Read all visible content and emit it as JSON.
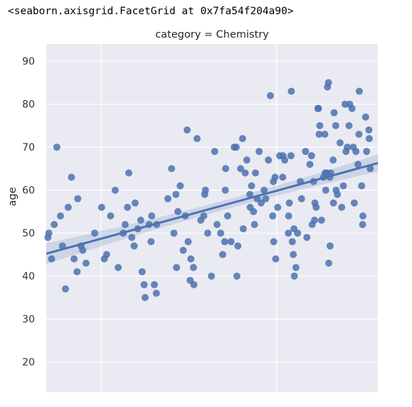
{
  "output_text": "<seaborn.axisgrid.FacetGrid at 0x7fa54f204a90>",
  "chart_data": {
    "type": "scatter",
    "title": "category = Chemistry",
    "xlabel": "",
    "ylabel": "age",
    "ylim": [
      13,
      94
    ],
    "xlim": [
      0,
      100
    ],
    "yticks": [
      20,
      30,
      40,
      50,
      60,
      70,
      80,
      90
    ],
    "xticks_gridlines_only": [
      16.5,
      69.5
    ],
    "grid": true,
    "background": "#eaeaf2",
    "point_color": "#4c72b0",
    "regression": {
      "x_start": 0,
      "y_start": 45.2,
      "x_end": 100,
      "y_end": 66.3,
      "ci_band_color": "#4c72b0"
    },
    "points": [
      {
        "x": 0.5,
        "y": 49
      },
      {
        "x": 0.8,
        "y": 50
      },
      {
        "x": 1.6,
        "y": 44
      },
      {
        "x": 2.4,
        "y": 52
      },
      {
        "x": 3.2,
        "y": 70
      },
      {
        "x": 4.3,
        "y": 54
      },
      {
        "x": 4.9,
        "y": 47
      },
      {
        "x": 5.8,
        "y": 37
      },
      {
        "x": 6.6,
        "y": 56
      },
      {
        "x": 7.6,
        "y": 63
      },
      {
        "x": 8.4,
        "y": 44
      },
      {
        "x": 9.3,
        "y": 41
      },
      {
        "x": 9.5,
        "y": 58
      },
      {
        "x": 10.5,
        "y": 47
      },
      {
        "x": 11.0,
        "y": 46
      },
      {
        "x": 12.0,
        "y": 43
      },
      {
        "x": 14.6,
        "y": 50
      },
      {
        "x": 16.7,
        "y": 56
      },
      {
        "x": 17.5,
        "y": 44
      },
      {
        "x": 18.2,
        "y": 45
      },
      {
        "x": 19.4,
        "y": 54
      },
      {
        "x": 20.8,
        "y": 60
      },
      {
        "x": 21.7,
        "y": 42
      },
      {
        "x": 23.2,
        "y": 50
      },
      {
        "x": 23.8,
        "y": 52
      },
      {
        "x": 24.5,
        "y": 56
      },
      {
        "x": 24.9,
        "y": 64
      },
      {
        "x": 25.8,
        "y": 49
      },
      {
        "x": 26.5,
        "y": 47
      },
      {
        "x": 26.8,
        "y": 57
      },
      {
        "x": 27.6,
        "y": 51
      },
      {
        "x": 28.5,
        "y": 53
      },
      {
        "x": 28.9,
        "y": 41
      },
      {
        "x": 29.5,
        "y": 38
      },
      {
        "x": 29.8,
        "y": 35
      },
      {
        "x": 31.0,
        "y": 52
      },
      {
        "x": 31.6,
        "y": 48
      },
      {
        "x": 31.8,
        "y": 54
      },
      {
        "x": 32.6,
        "y": 38
      },
      {
        "x": 33.2,
        "y": 36
      },
      {
        "x": 33.3,
        "y": 52
      },
      {
        "x": 36.7,
        "y": 58
      },
      {
        "x": 37.8,
        "y": 65
      },
      {
        "x": 38.5,
        "y": 50
      },
      {
        "x": 39.1,
        "y": 59
      },
      {
        "x": 39.3,
        "y": 42
      },
      {
        "x": 39.7,
        "y": 55
      },
      {
        "x": 40.4,
        "y": 61
      },
      {
        "x": 41.3,
        "y": 46
      },
      {
        "x": 41.9,
        "y": 54
      },
      {
        "x": 42.5,
        "y": 74
      },
      {
        "x": 42.8,
        "y": 48
      },
      {
        "x": 43.4,
        "y": 39
      },
      {
        "x": 43.6,
        "y": 44
      },
      {
        "x": 44.4,
        "y": 42
      },
      {
        "x": 44.5,
        "y": 38
      },
      {
        "x": 45.5,
        "y": 72
      },
      {
        "x": 46.6,
        "y": 53
      },
      {
        "x": 47.5,
        "y": 54
      },
      {
        "x": 47.8,
        "y": 59
      },
      {
        "x": 48.0,
        "y": 60
      },
      {
        "x": 48.7,
        "y": 50
      },
      {
        "x": 49.8,
        "y": 40
      },
      {
        "x": 50.8,
        "y": 69
      },
      {
        "x": 51.5,
        "y": 52
      },
      {
        "x": 52.6,
        "y": 50
      },
      {
        "x": 53.2,
        "y": 45
      },
      {
        "x": 53.8,
        "y": 48
      },
      {
        "x": 54.0,
        "y": 60
      },
      {
        "x": 54.1,
        "y": 65
      },
      {
        "x": 54.7,
        "y": 54
      },
      {
        "x": 55.7,
        "y": 48
      },
      {
        "x": 56.7,
        "y": 70
      },
      {
        "x": 57.3,
        "y": 70
      },
      {
        "x": 57.5,
        "y": 40
      },
      {
        "x": 57.8,
        "y": 47
      },
      {
        "x": 58.6,
        "y": 65
      },
      {
        "x": 59.2,
        "y": 72
      },
      {
        "x": 59.4,
        "y": 51
      },
      {
        "x": 60.0,
        "y": 64
      },
      {
        "x": 60.5,
        "y": 67
      },
      {
        "x": 61.4,
        "y": 59
      },
      {
        "x": 61.5,
        "y": 56
      },
      {
        "x": 61.9,
        "y": 61
      },
      {
        "x": 62.5,
        "y": 55
      },
      {
        "x": 62.8,
        "y": 52
      },
      {
        "x": 63.1,
        "y": 64
      },
      {
        "x": 63.6,
        "y": 58
      },
      {
        "x": 64.2,
        "y": 69
      },
      {
        "x": 64.8,
        "y": 57
      },
      {
        "x": 65.7,
        "y": 60
      },
      {
        "x": 66.2,
        "y": 58
      },
      {
        "x": 67.0,
        "y": 67
      },
      {
        "x": 67.6,
        "y": 82
      },
      {
        "x": 68.3,
        "y": 54
      },
      {
        "x": 68.5,
        "y": 62
      },
      {
        "x": 68.6,
        "y": 48
      },
      {
        "x": 69.0,
        "y": 63
      },
      {
        "x": 69.2,
        "y": 44
      },
      {
        "x": 69.8,
        "y": 56
      },
      {
        "x": 70.4,
        "y": 68
      },
      {
        "x": 71.3,
        "y": 63
      },
      {
        "x": 71.4,
        "y": 68
      },
      {
        "x": 71.9,
        "y": 67
      },
      {
        "x": 73.0,
        "y": 50
      },
      {
        "x": 73.1,
        "y": 54
      },
      {
        "x": 73.3,
        "y": 57
      },
      {
        "x": 73.8,
        "y": 68
      },
      {
        "x": 73.9,
        "y": 83
      },
      {
        "x": 74.2,
        "y": 48
      },
      {
        "x": 74.5,
        "y": 45
      },
      {
        "x": 74.7,
        "y": 51
      },
      {
        "x": 74.8,
        "y": 40
      },
      {
        "x": 75.3,
        "y": 42
      },
      {
        "x": 75.8,
        "y": 50
      },
      {
        "x": 76.6,
        "y": 62
      },
      {
        "x": 77.0,
        "y": 58
      },
      {
        "x": 78.2,
        "y": 69
      },
      {
        "x": 78.6,
        "y": 49
      },
      {
        "x": 79.5,
        "y": 66
      },
      {
        "x": 80.0,
        "y": 68
      },
      {
        "x": 80.2,
        "y": 52
      },
      {
        "x": 80.6,
        "y": 62
      },
      {
        "x": 80.9,
        "y": 53
      },
      {
        "x": 81.0,
        "y": 57
      },
      {
        "x": 81.4,
        "y": 56
      },
      {
        "x": 81.9,
        "y": 79
      },
      {
        "x": 82.1,
        "y": 79
      },
      {
        "x": 82.3,
        "y": 73
      },
      {
        "x": 82.5,
        "y": 75
      },
      {
        "x": 83.0,
        "y": 53
      },
      {
        "x": 83.6,
        "y": 63
      },
      {
        "x": 84.0,
        "y": 73
      },
      {
        "x": 84.1,
        "y": 64
      },
      {
        "x": 84.3,
        "y": 60
      },
      {
        "x": 84.6,
        "y": 64
      },
      {
        "x": 84.8,
        "y": 84
      },
      {
        "x": 85.1,
        "y": 85
      },
      {
        "x": 85.2,
        "y": 43
      },
      {
        "x": 85.5,
        "y": 63
      },
      {
        "x": 85.6,
        "y": 47
      },
      {
        "x": 85.8,
        "y": 64
      },
      {
        "x": 86.5,
        "y": 67
      },
      {
        "x": 86.6,
        "y": 57
      },
      {
        "x": 86.8,
        "y": 78
      },
      {
        "x": 87.3,
        "y": 75
      },
      {
        "x": 87.4,
        "y": 60
      },
      {
        "x": 87.8,
        "y": 59
      },
      {
        "x": 88.6,
        "y": 71
      },
      {
        "x": 89.1,
        "y": 56
      },
      {
        "x": 89.6,
        "y": 61
      },
      {
        "x": 90.1,
        "y": 80
      },
      {
        "x": 90.4,
        "y": 69
      },
      {
        "x": 90.8,
        "y": 70
      },
      {
        "x": 91.3,
        "y": 75
      },
      {
        "x": 91.5,
        "y": 80
      },
      {
        "x": 92.2,
        "y": 79
      },
      {
        "x": 92.6,
        "y": 70
      },
      {
        "x": 92.9,
        "y": 57
      },
      {
        "x": 93.4,
        "y": 69
      },
      {
        "x": 94.0,
        "y": 66
      },
      {
        "x": 94.3,
        "y": 73
      },
      {
        "x": 94.4,
        "y": 83
      },
      {
        "x": 95.1,
        "y": 61
      },
      {
        "x": 95.4,
        "y": 52
      },
      {
        "x": 95.5,
        "y": 54
      },
      {
        "x": 96.3,
        "y": 77
      },
      {
        "x": 96.6,
        "y": 69
      },
      {
        "x": 97.3,
        "y": 74
      },
      {
        "x": 97.4,
        "y": 72
      },
      {
        "x": 97.7,
        "y": 65
      }
    ]
  }
}
